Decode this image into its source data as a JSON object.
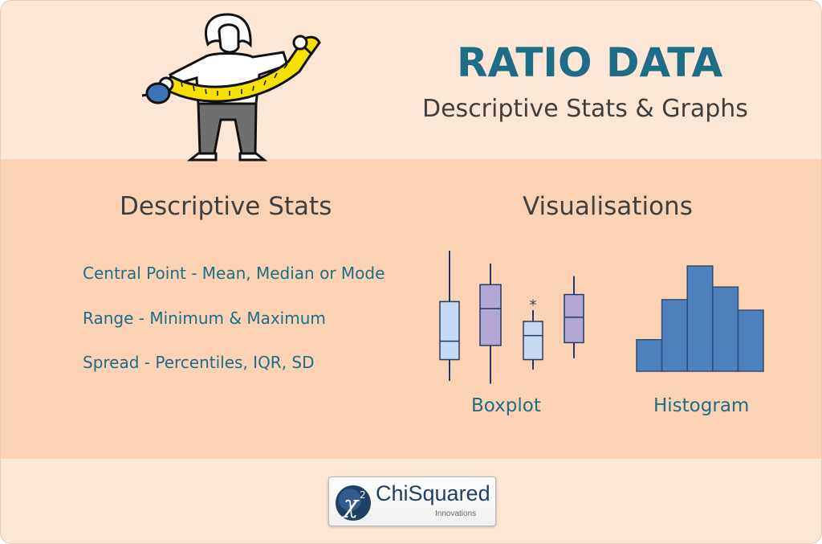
{
  "header": {
    "title": "RATIO DATA",
    "subtitle": "Descriptive Stats & Graphs"
  },
  "descriptive_stats": {
    "heading": "Descriptive Stats",
    "items": [
      "Central Point - Mean, Median or Mode",
      "Range - Minimum & Maximum",
      "Spread - Percentiles, IQR, SD"
    ]
  },
  "visualisations": {
    "heading": "Visualisations",
    "boxplot_label": "Boxplot",
    "histogram_label": "Histogram",
    "outlier_marker": "*"
  },
  "logo": {
    "symbol": "χ²",
    "main": "ChiSquared",
    "sub": "Innovations"
  },
  "colors": {
    "accent": "#1e6d86",
    "box_blue": "#c5d9f1",
    "box_purple": "#b4a7d6",
    "histogram": "#4f81bd",
    "tape": "#f5e000"
  },
  "chart_data": [
    {
      "type": "boxplot",
      "series": [
        {
          "min": 0.08,
          "q1": 0.23,
          "median": 0.36,
          "q3": 0.64,
          "max": 1.0
        },
        {
          "min": 0.06,
          "q1": 0.33,
          "median": 0.59,
          "q3": 0.76,
          "max": 0.91
        },
        {
          "min": 0.16,
          "q1": 0.23,
          "median": 0.4,
          "q3": 0.5,
          "max": 0.58,
          "outliers": [
            0.65
          ]
        },
        {
          "min": 0.24,
          "q1": 0.35,
          "median": 0.53,
          "q3": 0.69,
          "max": 0.82
        }
      ]
    },
    {
      "type": "bar",
      "values": [
        1.5,
        3.4,
        5.0,
        4.0,
        2.9
      ]
    }
  ]
}
